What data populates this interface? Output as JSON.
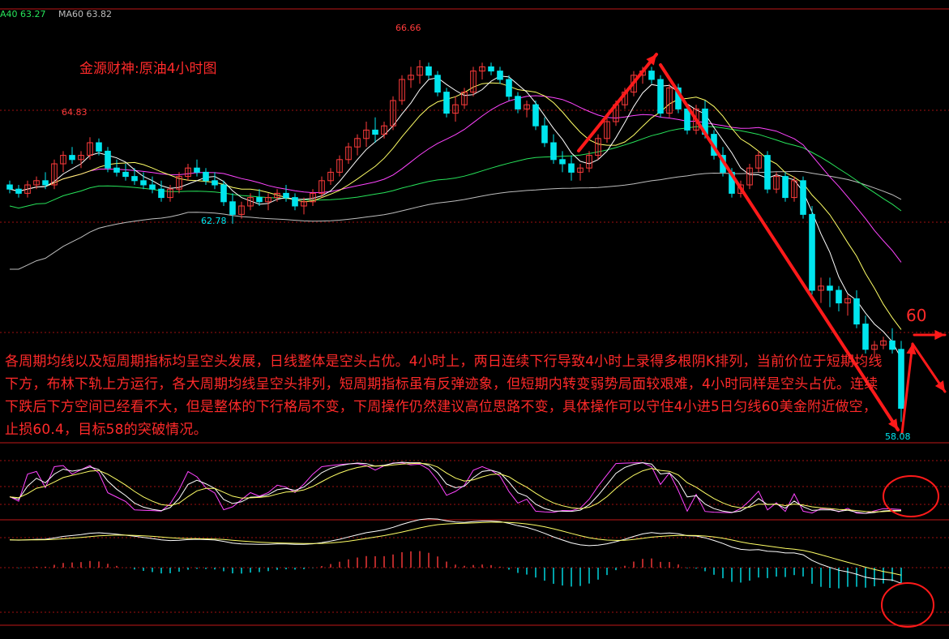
{
  "legend": {
    "ma40": "A40 63.27",
    "ma60": "MA60 63.82",
    "ma40_color": "#27e35a",
    "ma60_color": "#bdbdbd"
  },
  "title": "金源财神:原油4小时图",
  "analysis_text": "各周期均线以及短周期指标均呈空头发展，日线整体是空头占优。4小时上，两日连续下行导致4小时上录得多根阴K排列，当前价位于短期均线下方，布林下轨上方运行，各大周期均线呈空头排列，短周期指标虽有反弹迹象，但短期内转变弱势局面较艰难，4小时同样是空头占优。连续下跌后下方空间已经看不大，但是整体的下行格局不变，下周操作仍然建议高位思路不变，具体操作可以守住4小进5日匀线60美金附近做空，止损60.4，目标58的突破情况。",
  "annotations": {
    "high_label": "66.66",
    "left_high_label": "64.83",
    "low_label": "62.78",
    "recent_low_label": "58.08",
    "target_label": "60"
  },
  "colors": {
    "up": "#ff3b3b",
    "down": "#00e5ee",
    "ma5": "#ffffff",
    "ma10": "#ffff66",
    "ma20": "#ff44ff",
    "ma40": "#27e35a",
    "ma60": "#bdbdbd",
    "arrow": "#ff1a1a",
    "grid": "#a01010"
  },
  "chart_data": {
    "type": "candlestick",
    "ylim": [
      57.7,
      67.7
    ],
    "candles": [
      [
        63.7,
        63.8,
        63.5,
        63.6
      ],
      [
        63.6,
        63.7,
        63.4,
        63.5
      ],
      [
        63.5,
        63.8,
        63.4,
        63.7
      ],
      [
        63.7,
        63.9,
        63.6,
        63.8
      ],
      [
        63.8,
        64.0,
        63.6,
        63.7
      ],
      [
        63.7,
        64.3,
        63.6,
        64.2
      ],
      [
        64.2,
        64.5,
        64.0,
        64.4
      ],
      [
        64.4,
        64.6,
        64.2,
        64.3
      ],
      [
        64.3,
        64.5,
        64.1,
        64.4
      ],
      [
        64.4,
        64.83,
        64.3,
        64.7
      ],
      [
        64.7,
        64.8,
        64.4,
        64.5
      ],
      [
        64.5,
        64.6,
        64.0,
        64.1
      ],
      [
        64.1,
        64.3,
        63.9,
        64.0
      ],
      [
        64.0,
        64.2,
        63.8,
        63.9
      ],
      [
        63.9,
        64.1,
        63.7,
        63.8
      ],
      [
        63.8,
        64.0,
        63.6,
        63.7
      ],
      [
        63.7,
        63.9,
        63.5,
        63.6
      ],
      [
        63.6,
        63.8,
        63.3,
        63.4
      ],
      [
        63.4,
        63.7,
        63.3,
        63.6
      ],
      [
        63.6,
        64.0,
        63.5,
        63.9
      ],
      [
        63.9,
        64.2,
        63.8,
        64.1
      ],
      [
        64.1,
        64.3,
        63.9,
        64.0
      ],
      [
        64.0,
        64.1,
        63.7,
        63.8
      ],
      [
        63.8,
        64.0,
        63.6,
        63.7
      ],
      [
        63.7,
        63.8,
        63.2,
        63.3
      ],
      [
        63.3,
        63.5,
        62.78,
        63.0
      ],
      [
        63.0,
        63.3,
        62.9,
        63.2
      ],
      [
        63.2,
        63.5,
        63.1,
        63.4
      ],
      [
        63.4,
        63.6,
        63.2,
        63.3
      ],
      [
        63.3,
        63.5,
        63.1,
        63.4
      ],
      [
        63.4,
        63.6,
        63.3,
        63.5
      ],
      [
        63.5,
        63.7,
        63.3,
        63.4
      ],
      [
        63.4,
        63.5,
        63.1,
        63.2
      ],
      [
        63.2,
        63.4,
        63.0,
        63.3
      ],
      [
        63.3,
        63.6,
        63.2,
        63.5
      ],
      [
        63.5,
        63.9,
        63.4,
        63.8
      ],
      [
        63.8,
        64.1,
        63.7,
        64.0
      ],
      [
        64.0,
        64.4,
        63.9,
        64.3
      ],
      [
        64.3,
        64.7,
        64.2,
        64.6
      ],
      [
        64.6,
        64.9,
        64.4,
        64.8
      ],
      [
        64.8,
        65.2,
        64.6,
        65.0
      ],
      [
        65.0,
        65.3,
        64.7,
        64.9
      ],
      [
        64.9,
        65.2,
        64.8,
        65.1
      ],
      [
        65.1,
        65.8,
        65.0,
        65.7
      ],
      [
        65.7,
        66.3,
        65.6,
        66.2
      ],
      [
        66.2,
        66.5,
        66.0,
        66.3
      ],
      [
        66.3,
        66.66,
        66.1,
        66.5
      ],
      [
        66.5,
        66.6,
        66.2,
        66.3
      ],
      [
        66.3,
        66.4,
        65.8,
        65.9
      ],
      [
        65.9,
        66.0,
        65.3,
        65.4
      ],
      [
        65.4,
        65.8,
        65.2,
        65.6
      ],
      [
        65.6,
        66.0,
        65.5,
        65.9
      ],
      [
        65.9,
        66.5,
        65.8,
        66.4
      ],
      [
        66.4,
        66.6,
        66.2,
        66.5
      ],
      [
        66.5,
        66.6,
        66.3,
        66.4
      ],
      [
        66.4,
        66.5,
        66.1,
        66.2
      ],
      [
        66.2,
        66.3,
        65.7,
        65.8
      ],
      [
        65.8,
        65.9,
        65.4,
        65.5
      ],
      [
        65.5,
        65.7,
        65.3,
        65.6
      ],
      [
        65.6,
        65.7,
        65.0,
        65.1
      ],
      [
        65.1,
        65.3,
        64.6,
        64.7
      ],
      [
        64.7,
        64.9,
        64.2,
        64.3
      ],
      [
        64.3,
        64.5,
        64.0,
        64.2
      ],
      [
        64.2,
        64.4,
        63.8,
        64.0
      ],
      [
        64.0,
        64.2,
        63.8,
        64.1
      ],
      [
        64.1,
        64.5,
        64.0,
        64.4
      ],
      [
        64.4,
        64.9,
        64.3,
        64.8
      ],
      [
        64.8,
        65.3,
        64.7,
        65.2
      ],
      [
        65.2,
        65.7,
        65.1,
        65.6
      ],
      [
        65.6,
        66.0,
        65.5,
        65.9
      ],
      [
        65.9,
        66.4,
        65.8,
        66.3
      ],
      [
        66.3,
        66.5,
        66.1,
        66.4
      ],
      [
        66.4,
        66.5,
        66.1,
        66.2
      ],
      [
        66.2,
        66.3,
        65.3,
        65.4
      ],
      [
        65.4,
        66.1,
        65.3,
        66.0
      ],
      [
        66.0,
        66.1,
        65.4,
        65.5
      ],
      [
        65.5,
        65.6,
        64.9,
        65.0
      ],
      [
        65.0,
        65.6,
        64.9,
        65.5
      ],
      [
        65.5,
        65.7,
        64.8,
        64.9
      ],
      [
        64.9,
        65.0,
        64.3,
        64.4
      ],
      [
        64.4,
        64.6,
        63.9,
        64.0
      ],
      [
        64.0,
        64.1,
        63.4,
        63.5
      ],
      [
        63.5,
        63.8,
        63.4,
        63.7
      ],
      [
        63.7,
        64.2,
        63.6,
        64.1
      ],
      [
        64.1,
        64.5,
        64.0,
        64.4
      ],
      [
        64.4,
        64.5,
        63.5,
        63.6
      ],
      [
        63.6,
        64.0,
        63.5,
        63.9
      ],
      [
        63.9,
        64.0,
        63.3,
        63.4
      ],
      [
        63.4,
        63.9,
        63.3,
        63.8
      ],
      [
        63.8,
        63.9,
        62.9,
        63.0
      ],
      [
        63.0,
        63.2,
        61.1,
        61.2
      ],
      [
        61.2,
        61.5,
        60.9,
        61.3
      ],
      [
        61.3,
        61.5,
        60.8,
        61.2
      ],
      [
        61.2,
        61.3,
        60.7,
        60.9
      ],
      [
        60.9,
        61.1,
        60.6,
        61.0
      ],
      [
        61.0,
        61.2,
        60.3,
        60.4
      ],
      [
        60.4,
        60.6,
        59.7,
        59.8
      ],
      [
        59.8,
        60.0,
        59.6,
        59.9
      ],
      [
        59.9,
        60.1,
        59.8,
        60.0
      ],
      [
        60.0,
        60.3,
        59.7,
        59.8
      ],
      [
        59.8,
        60.0,
        58.08,
        58.4
      ]
    ],
    "candle_x_start": 0,
    "indicators": [
      "MA5",
      "MA10",
      "MA20",
      "MA40",
      "MA60",
      "KDJ",
      "MACD"
    ]
  }
}
